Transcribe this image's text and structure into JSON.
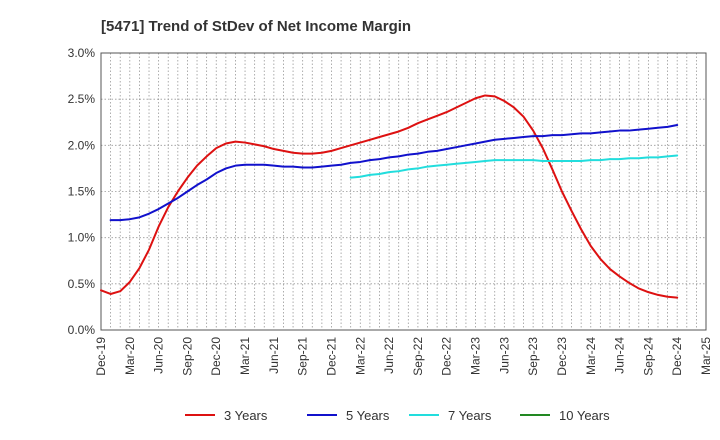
{
  "chart_data": {
    "type": "line",
    "title": "[5471]  Trend of StDev of Net Income Margin",
    "xlabel": "",
    "ylabel": "",
    "x_ticks": [
      "Dec-19",
      "Mar-20",
      "Jun-20",
      "Sep-20",
      "Dec-20",
      "Mar-21",
      "Jun-21",
      "Sep-21",
      "Dec-21",
      "Mar-22",
      "Jun-22",
      "Sep-22",
      "Dec-22",
      "Mar-23",
      "Jun-23",
      "Sep-23",
      "Dec-23",
      "Mar-24",
      "Jun-24",
      "Sep-24",
      "Dec-24",
      "Mar-25"
    ],
    "y_ticks": [
      "0.0%",
      "0.5%",
      "1.0%",
      "1.5%",
      "2.0%",
      "2.5%",
      "3.0%"
    ],
    "ylim": [
      0,
      3.0
    ],
    "y_unit": "%",
    "grid": true,
    "legend_position": "bottom",
    "series": [
      {
        "name": "3 Years",
        "color": "#dd1111",
        "points": [
          [
            "Dec-19",
            0.43
          ],
          [
            "Jan-20",
            0.39
          ],
          [
            "Feb-20",
            0.42
          ],
          [
            "Mar-20",
            0.52
          ],
          [
            "Apr-20",
            0.67
          ],
          [
            "May-20",
            0.87
          ],
          [
            "Jun-20",
            1.12
          ],
          [
            "Jul-20",
            1.33
          ],
          [
            "Aug-20",
            1.5
          ],
          [
            "Sep-20",
            1.65
          ],
          [
            "Oct-20",
            1.78
          ],
          [
            "Nov-20",
            1.88
          ],
          [
            "Dec-20",
            1.97
          ],
          [
            "Jan-21",
            2.02
          ],
          [
            "Feb-21",
            2.04
          ],
          [
            "Mar-21",
            2.03
          ],
          [
            "Apr-21",
            2.01
          ],
          [
            "May-21",
            1.99
          ],
          [
            "Jun-21",
            1.96
          ],
          [
            "Jul-21",
            1.94
          ],
          [
            "Aug-21",
            1.92
          ],
          [
            "Sep-21",
            1.91
          ],
          [
            "Oct-21",
            1.91
          ],
          [
            "Nov-21",
            1.92
          ],
          [
            "Dec-21",
            1.94
          ],
          [
            "Jan-22",
            1.97
          ],
          [
            "Feb-22",
            2.0
          ],
          [
            "Mar-22",
            2.03
          ],
          [
            "Apr-22",
            2.06
          ],
          [
            "May-22",
            2.09
          ],
          [
            "Jun-22",
            2.12
          ],
          [
            "Jul-22",
            2.15
          ],
          [
            "Aug-22",
            2.19
          ],
          [
            "Sep-22",
            2.24
          ],
          [
            "Oct-22",
            2.28
          ],
          [
            "Nov-22",
            2.32
          ],
          [
            "Dec-22",
            2.36
          ],
          [
            "Jan-23",
            2.41
          ],
          [
            "Feb-23",
            2.46
          ],
          [
            "Mar-23",
            2.51
          ],
          [
            "Apr-23",
            2.54
          ],
          [
            "May-23",
            2.53
          ],
          [
            "Jun-23",
            2.48
          ],
          [
            "Jul-23",
            2.41
          ],
          [
            "Aug-23",
            2.31
          ],
          [
            "Sep-23",
            2.16
          ],
          [
            "Oct-23",
            1.97
          ],
          [
            "Nov-23",
            1.74
          ],
          [
            "Dec-23",
            1.5
          ],
          [
            "Jan-24",
            1.29
          ],
          [
            "Feb-24",
            1.09
          ],
          [
            "Mar-24",
            0.91
          ],
          [
            "Apr-24",
            0.77
          ],
          [
            "May-24",
            0.66
          ],
          [
            "Jun-24",
            0.58
          ],
          [
            "Jul-24",
            0.51
          ],
          [
            "Aug-24",
            0.45
          ],
          [
            "Sep-24",
            0.41
          ],
          [
            "Oct-24",
            0.38
          ],
          [
            "Nov-24",
            0.36
          ],
          [
            "Dec-24",
            0.35
          ]
        ]
      },
      {
        "name": "5 Years",
        "color": "#1111cc",
        "points": [
          [
            "Jan-20",
            1.19
          ],
          [
            "Feb-20",
            1.19
          ],
          [
            "Mar-20",
            1.2
          ],
          [
            "Apr-20",
            1.22
          ],
          [
            "May-20",
            1.26
          ],
          [
            "Jun-20",
            1.31
          ],
          [
            "Jul-20",
            1.37
          ],
          [
            "Aug-20",
            1.43
          ],
          [
            "Sep-20",
            1.5
          ],
          [
            "Oct-20",
            1.57
          ],
          [
            "Nov-20",
            1.63
          ],
          [
            "Dec-20",
            1.7
          ],
          [
            "Jan-21",
            1.75
          ],
          [
            "Feb-21",
            1.78
          ],
          [
            "Mar-21",
            1.79
          ],
          [
            "Apr-21",
            1.79
          ],
          [
            "May-21",
            1.79
          ],
          [
            "Jun-21",
            1.78
          ],
          [
            "Jul-21",
            1.77
          ],
          [
            "Aug-21",
            1.77
          ],
          [
            "Sep-21",
            1.76
          ],
          [
            "Oct-21",
            1.76
          ],
          [
            "Nov-21",
            1.77
          ],
          [
            "Dec-21",
            1.78
          ],
          [
            "Jan-22",
            1.79
          ],
          [
            "Feb-22",
            1.81
          ],
          [
            "Mar-22",
            1.82
          ],
          [
            "Apr-22",
            1.84
          ],
          [
            "May-22",
            1.85
          ],
          [
            "Jun-22",
            1.87
          ],
          [
            "Jul-22",
            1.88
          ],
          [
            "Aug-22",
            1.9
          ],
          [
            "Sep-22",
            1.91
          ],
          [
            "Oct-22",
            1.93
          ],
          [
            "Nov-22",
            1.94
          ],
          [
            "Dec-22",
            1.96
          ],
          [
            "Jan-23",
            1.98
          ],
          [
            "Feb-23",
            2.0
          ],
          [
            "Mar-23",
            2.02
          ],
          [
            "Apr-23",
            2.04
          ],
          [
            "May-23",
            2.06
          ],
          [
            "Jun-23",
            2.07
          ],
          [
            "Jul-23",
            2.08
          ],
          [
            "Aug-23",
            2.09
          ],
          [
            "Sep-23",
            2.1
          ],
          [
            "Oct-23",
            2.1
          ],
          [
            "Nov-23",
            2.11
          ],
          [
            "Dec-23",
            2.11
          ],
          [
            "Jan-24",
            2.12
          ],
          [
            "Feb-24",
            2.13
          ],
          [
            "Mar-24",
            2.13
          ],
          [
            "Apr-24",
            2.14
          ],
          [
            "May-24",
            2.15
          ],
          [
            "Jun-24",
            2.16
          ],
          [
            "Jul-24",
            2.16
          ],
          [
            "Aug-24",
            2.17
          ],
          [
            "Sep-24",
            2.18
          ],
          [
            "Oct-24",
            2.19
          ],
          [
            "Nov-24",
            2.2
          ],
          [
            "Dec-24",
            2.22
          ]
        ]
      },
      {
        "name": "7 Years",
        "color": "#22dddd",
        "points": [
          [
            "Feb-22",
            1.65
          ],
          [
            "Mar-22",
            1.66
          ],
          [
            "Apr-22",
            1.68
          ],
          [
            "May-22",
            1.69
          ],
          [
            "Jun-22",
            1.71
          ],
          [
            "Jul-22",
            1.72
          ],
          [
            "Aug-22",
            1.74
          ],
          [
            "Sep-22",
            1.75
          ],
          [
            "Oct-22",
            1.77
          ],
          [
            "Nov-22",
            1.78
          ],
          [
            "Dec-22",
            1.79
          ],
          [
            "Jan-23",
            1.8
          ],
          [
            "Feb-23",
            1.81
          ],
          [
            "Mar-23",
            1.82
          ],
          [
            "Apr-23",
            1.83
          ],
          [
            "May-23",
            1.84
          ],
          [
            "Jun-23",
            1.84
          ],
          [
            "Jul-23",
            1.84
          ],
          [
            "Aug-23",
            1.84
          ],
          [
            "Sep-23",
            1.84
          ],
          [
            "Oct-23",
            1.83
          ],
          [
            "Nov-23",
            1.83
          ],
          [
            "Dec-23",
            1.83
          ],
          [
            "Jan-24",
            1.83
          ],
          [
            "Feb-24",
            1.83
          ],
          [
            "Mar-24",
            1.84
          ],
          [
            "Apr-24",
            1.84
          ],
          [
            "May-24",
            1.85
          ],
          [
            "Jun-24",
            1.85
          ],
          [
            "Jul-24",
            1.86
          ],
          [
            "Aug-24",
            1.86
          ],
          [
            "Sep-24",
            1.87
          ],
          [
            "Oct-24",
            1.87
          ],
          [
            "Nov-24",
            1.88
          ],
          [
            "Dec-24",
            1.89
          ]
        ]
      },
      {
        "name": "10 Years",
        "color": "#228822",
        "points": []
      }
    ]
  }
}
